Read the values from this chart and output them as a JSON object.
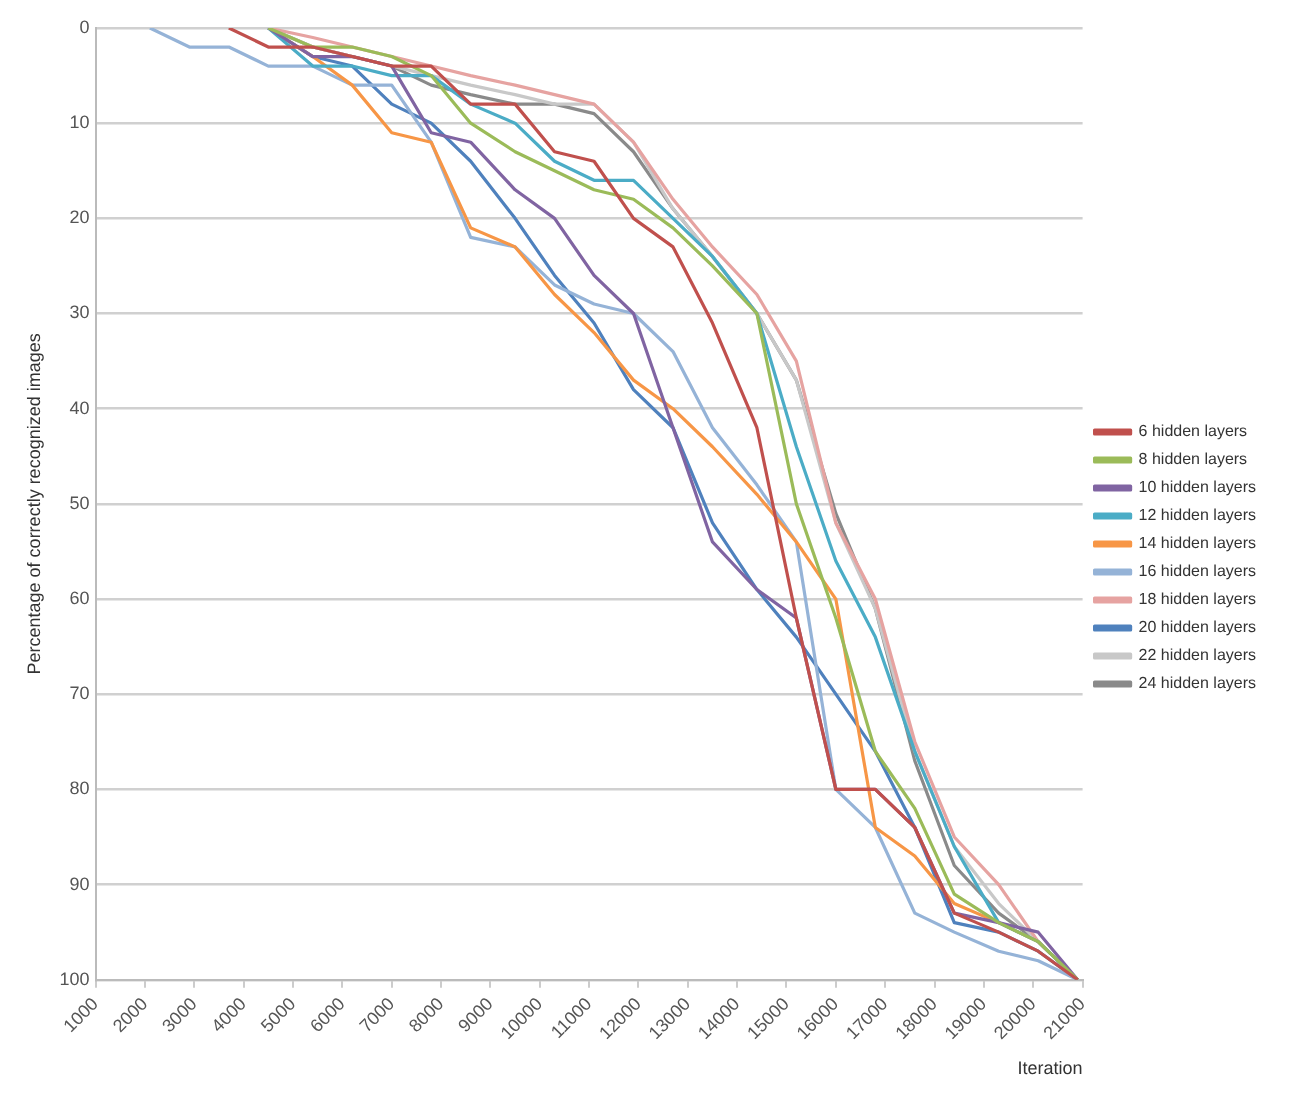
{
  "chart_data": {
    "type": "line",
    "xlabel": "Iteration",
    "ylabel": "Percentage of correctly recognized images",
    "x": [
      2100,
      2900,
      3700,
      4500,
      5400,
      6200,
      7000,
      7800,
      8600,
      9500,
      10300,
      11100,
      11900,
      12700,
      13500,
      14400,
      15200,
      16000,
      16800,
      17600,
      18400,
      19300,
      20100,
      20900
    ],
    "xlim": [
      1000,
      21000
    ],
    "xticks": [
      1000,
      2000,
      3000,
      4000,
      5000,
      6000,
      7000,
      8000,
      9000,
      10000,
      11000,
      12000,
      13000,
      14000,
      15000,
      16000,
      17000,
      18000,
      19000,
      20000,
      21000
    ],
    "ylim": [
      100,
      0
    ],
    "yticks": [
      0,
      10,
      20,
      30,
      40,
      50,
      60,
      70,
      80,
      90,
      100
    ],
    "grid": "y",
    "legend": "right",
    "marker": "none",
    "series": [
      {
        "name": "6 hidden layers",
        "color": "#c0504d",
        "values": [
          null,
          null,
          0,
          2,
          2,
          3,
          4,
          4,
          8,
          8,
          13,
          14,
          20,
          23,
          31,
          42,
          62,
          80,
          80,
          84,
          93,
          95,
          97,
          100
        ]
      },
      {
        "name": "8 hidden layers",
        "color": "#9bbb59",
        "values": [
          null,
          null,
          null,
          0,
          2,
          2,
          3,
          5,
          10,
          13,
          15,
          17,
          18,
          21,
          25,
          30,
          50,
          62,
          76,
          82,
          91,
          94,
          96,
          100
        ]
      },
      {
        "name": "10 hidden layers",
        "color": "#8064a2",
        "values": [
          null,
          null,
          null,
          0,
          3,
          3,
          4,
          11,
          12,
          17,
          20,
          26,
          30,
          42,
          54,
          59,
          62,
          80,
          80,
          84,
          93,
          94,
          95,
          100
        ]
      },
      {
        "name": "12 hidden layers",
        "color": "#4bacc6",
        "values": [
          null,
          null,
          null,
          0,
          4,
          4,
          5,
          5,
          8,
          10,
          14,
          16,
          16,
          20,
          24,
          30,
          44,
          56,
          64,
          76,
          86,
          94,
          96,
          100
        ]
      },
      {
        "name": "14 hidden layers",
        "color": "#f79646",
        "values": [
          null,
          null,
          null,
          0,
          3,
          6,
          11,
          12,
          21,
          23,
          28,
          32,
          37,
          40,
          44,
          49,
          54,
          60,
          84,
          87,
          92,
          94,
          96,
          100
        ]
      },
      {
        "name": "16 hidden layers",
        "color": "#95b3d7",
        "values": [
          0,
          2,
          2,
          4,
          4,
          6,
          6,
          12,
          22,
          23,
          27,
          29,
          30,
          34,
          42,
          48,
          54,
          80,
          84,
          93,
          95,
          97,
          98,
          100
        ]
      },
      {
        "name": "18 hidden layers",
        "color": "#e6a3a1",
        "values": [
          null,
          null,
          null,
          0,
          1,
          2,
          3,
          4,
          5,
          6,
          7,
          8,
          12,
          18,
          23,
          28,
          35,
          52,
          60,
          75,
          85,
          90,
          96,
          100
        ]
      },
      {
        "name": "20 hidden layers",
        "color": "#4f81bd",
        "values": [
          null,
          null,
          null,
          0,
          3,
          4,
          8,
          10,
          14,
          20,
          26,
          31,
          38,
          42,
          52,
          59,
          64,
          70,
          76,
          84,
          94,
          95,
          97,
          100
        ]
      },
      {
        "name": "22 hidden layers",
        "color": "#c8c8c8",
        "values": [
          null,
          null,
          null,
          0,
          2,
          3,
          4,
          5,
          6,
          7,
          8,
          8,
          12,
          19,
          24,
          30,
          37,
          52,
          61,
          76,
          86,
          92,
          96,
          100
        ]
      },
      {
        "name": "24 hidden layers",
        "color": "#8a8a8a",
        "values": [
          null,
          null,
          null,
          0,
          2,
          3,
          4,
          6,
          7,
          8,
          8,
          9,
          13,
          19,
          24,
          30,
          37,
          51,
          61,
          77,
          88,
          93,
          96,
          100
        ]
      }
    ]
  }
}
